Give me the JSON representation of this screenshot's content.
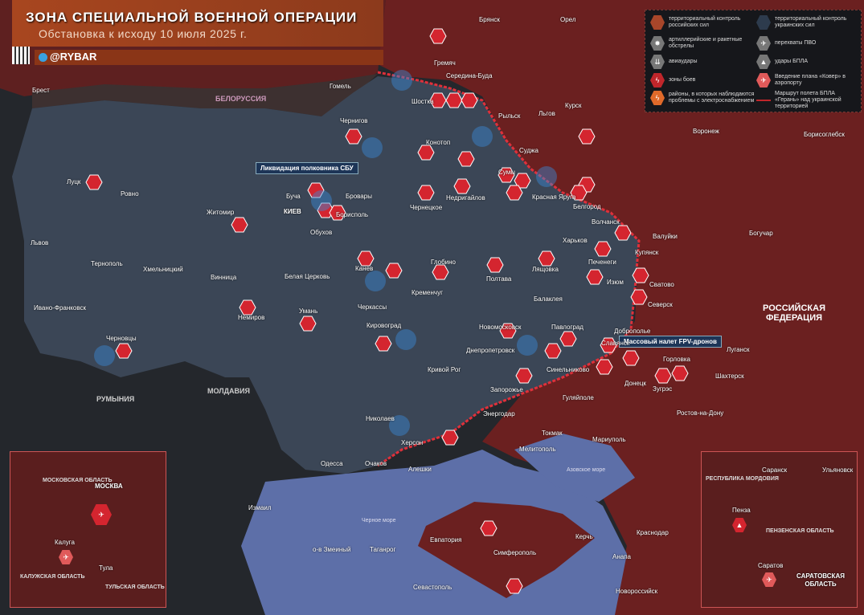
{
  "header": {
    "title": "ЗОНА СПЕЦИАЛЬНОЙ ВОЕННОЙ ОПЕРАЦИИ",
    "subtitle": "Обстановка к исходу 10 июля 2025 г.",
    "handle": "@RYBAR"
  },
  "legend": [
    {
      "label": "территориальный контроль российских сил",
      "color": "#a8462a",
      "icon": "hex"
    },
    {
      "label": "территориальный контроль украинских сил",
      "color": "#2d3b4d",
      "icon": "hex"
    },
    {
      "label": "артиллерийские и ракетные обстрелы",
      "color": "#777",
      "icon": "artillery-icon"
    },
    {
      "label": "перехваты ПВО",
      "color": "#777",
      "icon": "air-defense-icon"
    },
    {
      "label": "авиаудары",
      "color": "#777",
      "icon": "airstrike-icon"
    },
    {
      "label": "удары БПЛА",
      "color": "#777",
      "icon": "drone-icon"
    },
    {
      "label": "зоны боев",
      "color": "#c0262b",
      "icon": "lightning-icon"
    },
    {
      "label": "Введение плана «Ковер» в аэропорту",
      "color": "#e05a5a",
      "icon": "plane-icon"
    },
    {
      "label": "районы, в которых наблюдаются проблемы с электроснабжением",
      "color": "#e06a2a",
      "icon": "lightning-icon"
    },
    {
      "label": "Маршрут полета БПЛА «Герань» над украинской территорией",
      "color": "#c0262b",
      "icon": "line"
    }
  ],
  "regions": [
    "БЕЛОРУССИЯ",
    "РОССИЙСКАЯ ФЕДЕРАЦИЯ",
    "РУМЫНИЯ",
    "МОЛДАВИЯ",
    "Черное море",
    "Азовское море"
  ],
  "callouts": [
    "Ликвидация полковника СБУ",
    "Массовый налет FPV-дронов"
  ],
  "cities": [
    "Брянск",
    "Орел",
    "Брест",
    "Гомель",
    "Гремяч",
    "Середина-Буда",
    "Шостка",
    "Чернигов",
    "Рыльск",
    "Льгов",
    "Курск",
    "Воронеж",
    "Борисоглебск",
    "Конотоп",
    "Суджа",
    "Луцк",
    "Ровно",
    "Житомир",
    "Буча",
    "Бровары",
    "КИЕВ",
    "Борисполь",
    "Обухов",
    "Чернецкое",
    "Недригайлов",
    "Сумы",
    "Красная Яруга",
    "Белгород",
    "Волчанск",
    "Харьков",
    "Валуйки",
    "Львов",
    "Тернополь",
    "Хмельницкий",
    "Винница",
    "Белая Церковь",
    "Канев",
    "Глобино",
    "Полтава",
    "Лящовка",
    "Печенеги",
    "Купянск",
    "Балаклея",
    "Изюм",
    "Сватово",
    "Богучар",
    "Черкассы",
    "Кременчуг",
    "Ивано-Франковск",
    "Немиров",
    "Умань",
    "Черновцы",
    "Кировоград",
    "Новомосковск",
    "Павлоград",
    "Славянск",
    "Северск",
    "Доброполье",
    "Луганск",
    "Днепропетровск",
    "Кривой Рог",
    "Синельниково",
    "Горловка",
    "Шахтерск",
    "Донецк",
    "Зугрэс",
    "Николаев",
    "Запорожье",
    "Гуляйполе",
    "Энергодар",
    "Ростов-на-Дону",
    "Одесса",
    "Херсон",
    "Токмак",
    "Мариуполь",
    "Мелитополь",
    "Очаков",
    "Алешки",
    "Измаил",
    "о-в Змеиный",
    "Евпатория",
    "Керчь",
    "Анапа",
    "Краснодар",
    "Симферополь",
    "Севастополь",
    "Новороссийск",
    "Таганрог"
  ],
  "insets": {
    "left": {
      "cities": [
        "МОСКВА",
        "Калуга",
        "Тула"
      ],
      "regions": [
        "МОСКОВСКАЯ ОБЛАСТЬ",
        "КАЛУЖСКАЯ ОБЛАСТЬ",
        "ТУЛЬСКАЯ ОБЛАСТЬ"
      ]
    },
    "right": {
      "cities": [
        "Саранск",
        "Ульяновск",
        "Пенза",
        "Саратов"
      ],
      "regions": [
        "РЕСПУБЛИКА МОРДОВИЯ",
        "ПЕНЗЕНСКАЯ ОБЛАСТЬ",
        "САРАТОВСКАЯ ОБЛАСТЬ"
      ]
    }
  },
  "colors": {
    "russia": "#6b2020",
    "ukraine": "#3b4656",
    "sea": "#5d6fa8",
    "marker": "#d4252f"
  }
}
